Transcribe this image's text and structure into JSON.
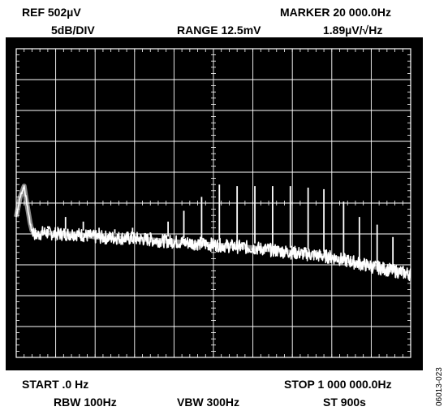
{
  "header": {
    "ref": "REF 502µV",
    "marker": "MARKER 20 000.0Hz",
    "scale": "5dB/DIV",
    "range": "RANGE 12.5mV",
    "density": "1.89µV/√Hz"
  },
  "footer": {
    "start": "START .0 Hz",
    "stop": "STOP 1 000 000.0Hz",
    "rbw": "RBW 100Hz",
    "vbw": "VBW 300Hz",
    "st": "ST 900s"
  },
  "figure_id": "06013-023",
  "colors": {
    "screen": "#000000",
    "trace": "#ffffff",
    "grid": "#ffffff"
  },
  "chart_data": {
    "type": "line",
    "x_unit": "Hz",
    "xlim": [
      0,
      1000000
    ],
    "grid": true,
    "grid_divisions": [
      10,
      10
    ],
    "y_scale_db_per_div": 5,
    "ylim_div": [
      0,
      10
    ],
    "series": [
      {
        "values": [
          [
            0,
            4.55
          ],
          [
            10000,
            5.2
          ],
          [
            20000,
            5.55
          ],
          [
            28000,
            4.9
          ],
          [
            38000,
            4.15
          ],
          [
            50000,
            3.95
          ],
          [
            70000,
            4.05
          ],
          [
            100000,
            4.0
          ],
          [
            150000,
            4.0
          ],
          [
            200000,
            3.9
          ],
          [
            300000,
            3.85
          ],
          [
            400000,
            3.75
          ],
          [
            500000,
            3.65
          ],
          [
            600000,
            3.55
          ],
          [
            700000,
            3.4
          ],
          [
            800000,
            3.25
          ],
          [
            900000,
            2.95
          ],
          [
            1000000,
            2.7
          ]
        ]
      }
    ],
    "spurs": [
      {
        "x": 80000,
        "peak": 4.25
      },
      {
        "x": 125000,
        "peak": 4.55
      },
      {
        "x": 170000,
        "peak": 4.4
      },
      {
        "x": 210000,
        "peak": 4.2
      },
      {
        "x": 250000,
        "peak": 4.15
      },
      {
        "x": 295000,
        "peak": 4.2
      },
      {
        "x": 340000,
        "peak": 4.05
      },
      {
        "x": 385000,
        "peak": 4.4
      },
      {
        "x": 425000,
        "peak": 4.75
      },
      {
        "x": 470000,
        "peak": 5.2
      },
      {
        "x": 515000,
        "peak": 5.6
      },
      {
        "x": 560000,
        "peak": 5.55
      },
      {
        "x": 605000,
        "peak": 5.55
      },
      {
        "x": 650000,
        "peak": 5.55
      },
      {
        "x": 695000,
        "peak": 5.55
      },
      {
        "x": 740000,
        "peak": 5.5
      },
      {
        "x": 780000,
        "peak": 5.45
      },
      {
        "x": 830000,
        "peak": 5.05
      },
      {
        "x": 870000,
        "peak": 4.55
      },
      {
        "x": 915000,
        "peak": 4.3
      },
      {
        "x": 955000,
        "peak": 3.9
      }
    ]
  }
}
